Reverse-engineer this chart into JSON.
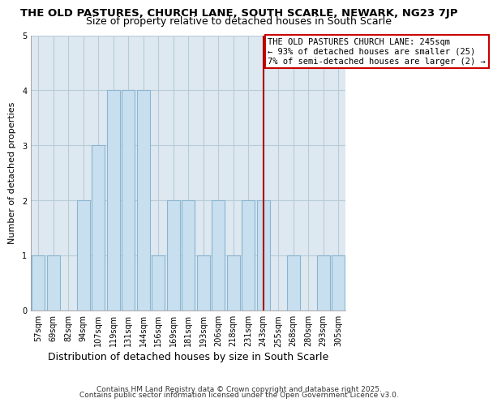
{
  "title": "THE OLD PASTURES, CHURCH LANE, SOUTH SCARLE, NEWARK, NG23 7JP",
  "subtitle": "Size of property relative to detached houses in South Scarle",
  "xlabel": "Distribution of detached houses by size in South Scarle",
  "ylabel": "Number of detached properties",
  "bar_color": "#c8dff0",
  "bar_edgecolor": "#8ab4d0",
  "grid_color": "#b8ccd8",
  "plot_bg_color": "#dde8f0",
  "fig_bg_color": "#ffffff",
  "categories": [
    "57sqm",
    "69sqm",
    "82sqm",
    "94sqm",
    "107sqm",
    "119sqm",
    "131sqm",
    "144sqm",
    "156sqm",
    "169sqm",
    "181sqm",
    "193sqm",
    "206sqm",
    "218sqm",
    "231sqm",
    "243sqm",
    "255sqm",
    "268sqm",
    "280sqm",
    "293sqm",
    "305sqm"
  ],
  "values": [
    1,
    1,
    0,
    2,
    3,
    4,
    4,
    4,
    1,
    2,
    2,
    1,
    2,
    1,
    2,
    2,
    0,
    1,
    0,
    1,
    1
  ],
  "red_line_index": 15,
  "red_line_color": "#aa0000",
  "annotation_text": "THE OLD PASTURES CHURCH LANE: 245sqm\n← 93% of detached houses are smaller (25)\n7% of semi-detached houses are larger (2) →",
  "annotation_box_color": "#ffffff",
  "annotation_border_color": "#cc0000",
  "ylim": [
    0,
    5
  ],
  "yticks": [
    0,
    1,
    2,
    3,
    4,
    5
  ],
  "footer_line1": "Contains HM Land Registry data © Crown copyright and database right 2025.",
  "footer_line2": "Contains public sector information licensed under the Open Government Licence v3.0.",
  "title_fontsize": 9.5,
  "subtitle_fontsize": 9,
  "xlabel_fontsize": 9,
  "ylabel_fontsize": 8,
  "tick_fontsize": 7,
  "annotation_fontsize": 7.5,
  "footer_fontsize": 6.5
}
